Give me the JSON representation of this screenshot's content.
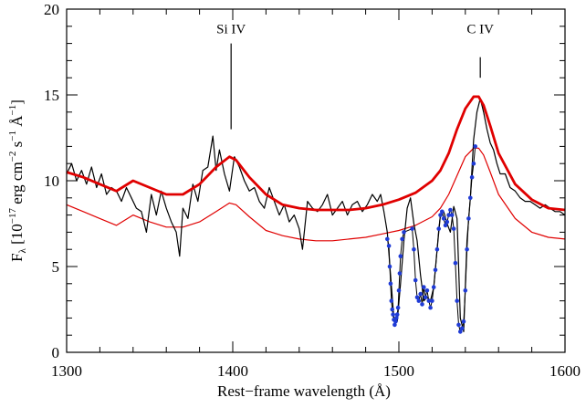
{
  "chart_data": {
    "type": "line",
    "xlabel": "Rest−frame wavelength (Å)",
    "ylabel_main": "F",
    "ylabel_sub": "λ",
    "ylabel_rest": " [10",
    "ylabel_exp1": "−17",
    "ylabel_mid1": " erg cm",
    "ylabel_exp2": "−2",
    "ylabel_mid2": " s",
    "ylabel_exp3": "−1",
    "ylabel_mid3": " Å",
    "ylabel_exp4": "−1",
    "ylabel_end": "]",
    "xlim": [
      1300,
      1600
    ],
    "ylim": [
      0,
      20
    ],
    "xticks": [
      1300,
      1400,
      1500,
      1600
    ],
    "xtick_labels": [
      "1300",
      "1400",
      "1500",
      "1600"
    ],
    "yticks": [
      0,
      5,
      10,
      15,
      20
    ],
    "ytick_labels": [
      "0",
      "5",
      "10",
      "15",
      "20"
    ],
    "grid": false,
    "annotations": [
      {
        "text": "Si IV",
        "x": 1399,
        "line_from": 13,
        "line_to": 18.0,
        "label_y": 18.6
      },
      {
        "text": "C IV",
        "x": 1549,
        "line_from": 16,
        "line_to": 17.2,
        "label_y": 18.6
      }
    ],
    "series": [
      {
        "color": "#000000",
        "kind": "observed_spectrum",
        "x": [
          1300,
          1303,
          1306,
          1309,
          1312,
          1315,
          1318,
          1321,
          1324,
          1327,
          1330,
          1333,
          1336,
          1339,
          1342,
          1345,
          1348,
          1351,
          1354,
          1357,
          1360,
          1363,
          1366,
          1368,
          1370,
          1373,
          1376,
          1379,
          1382,
          1385,
          1388,
          1390,
          1392,
          1395,
          1398,
          1401,
          1404,
          1407,
          1410,
          1413,
          1416,
          1419,
          1422,
          1425,
          1428,
          1431,
          1434,
          1437,
          1440,
          1442,
          1445,
          1448,
          1451,
          1454,
          1457,
          1460,
          1463,
          1466,
          1469,
          1472,
          1475,
          1478,
          1481,
          1484,
          1487,
          1489,
          1491,
          1493,
          1495,
          1497,
          1499,
          1501,
          1503,
          1505,
          1507,
          1509,
          1511,
          1513,
          1515,
          1517,
          1519,
          1521,
          1523,
          1525,
          1527,
          1529,
          1531,
          1533,
          1535,
          1537,
          1539,
          1541,
          1543,
          1545,
          1547,
          1549,
          1551,
          1553,
          1555,
          1557,
          1559,
          1561,
          1564,
          1567,
          1570,
          1573,
          1576,
          1579,
          1582,
          1585,
          1588,
          1591,
          1594,
          1597,
          1600
        ],
        "y": [
          10.4,
          11.0,
          10.0,
          10.6,
          9.8,
          10.8,
          9.6,
          10.4,
          9.2,
          9.6,
          9.4,
          8.8,
          9.6,
          9.0,
          8.4,
          8.2,
          7.0,
          9.2,
          8.0,
          9.4,
          8.4,
          7.6,
          7.0,
          5.6,
          8.4,
          7.8,
          9.8,
          8.8,
          10.6,
          10.8,
          12.6,
          10.6,
          11.8,
          10.4,
          9.4,
          11.4,
          10.8,
          10.0,
          9.4,
          9.6,
          8.8,
          8.4,
          9.6,
          8.8,
          8.0,
          8.6,
          7.6,
          8.0,
          7.2,
          6.0,
          8.8,
          8.4,
          8.2,
          8.6,
          9.2,
          8.0,
          8.4,
          8.8,
          8.0,
          8.6,
          8.8,
          8.2,
          8.6,
          9.2,
          8.8,
          9.2,
          8.2,
          7.0,
          4.5,
          2.0,
          1.8,
          4.0,
          6.5,
          8.4,
          9.0,
          7.5,
          6.5,
          4.5,
          3.0,
          3.2,
          3.0,
          3.8,
          6.0,
          8.0,
          8.2,
          7.5,
          7.0,
          8.5,
          7.8,
          2.0,
          1.2,
          6.5,
          9.0,
          12.4,
          14.0,
          14.8,
          14.0,
          13.0,
          12.2,
          11.8,
          11.0,
          10.4,
          10.4,
          9.6,
          9.4,
          9.0,
          8.8,
          8.8,
          8.6,
          8.4,
          8.6,
          8.4,
          8.2,
          8.2,
          8.0
        ]
      },
      {
        "color": "#e00000",
        "kind": "thick_fit",
        "x": [
          1300,
          1310,
          1320,
          1330,
          1340,
          1350,
          1360,
          1370,
          1380,
          1390,
          1398,
          1402,
          1410,
          1420,
          1430,
          1440,
          1450,
          1460,
          1470,
          1480,
          1490,
          1500,
          1510,
          1520,
          1525,
          1530,
          1535,
          1540,
          1545,
          1548,
          1551,
          1555,
          1560,
          1570,
          1580,
          1590,
          1600
        ],
        "y": [
          10.5,
          10.2,
          9.8,
          9.4,
          10.0,
          9.6,
          9.2,
          9.2,
          9.8,
          10.8,
          11.4,
          11.2,
          10.2,
          9.2,
          8.6,
          8.4,
          8.3,
          8.3,
          8.3,
          8.4,
          8.6,
          8.9,
          9.3,
          10.0,
          10.6,
          11.6,
          13.0,
          14.2,
          14.9,
          14.9,
          14.4,
          13.2,
          11.6,
          9.8,
          8.9,
          8.4,
          8.3
        ]
      },
      {
        "color": "#e00000",
        "kind": "thin_template",
        "x": [
          1300,
          1310,
          1320,
          1330,
          1340,
          1350,
          1360,
          1370,
          1380,
          1390,
          1398,
          1402,
          1410,
          1420,
          1430,
          1440,
          1450,
          1460,
          1470,
          1480,
          1490,
          1500,
          1510,
          1520,
          1525,
          1530,
          1535,
          1540,
          1545,
          1548,
          1551,
          1555,
          1560,
          1570,
          1580,
          1590,
          1600
        ],
        "y": [
          8.6,
          8.2,
          7.8,
          7.4,
          8.0,
          7.6,
          7.3,
          7.3,
          7.6,
          8.2,
          8.7,
          8.6,
          7.9,
          7.1,
          6.8,
          6.6,
          6.5,
          6.5,
          6.6,
          6.7,
          6.9,
          7.1,
          7.4,
          7.9,
          8.4,
          9.2,
          10.3,
          11.4,
          11.9,
          11.9,
          11.5,
          10.5,
          9.2,
          7.8,
          7.0,
          6.7,
          6.6
        ]
      },
      {
        "color": "#1f3bd6",
        "kind": "absorption_points",
        "x": [
          1493,
          1494,
          1494.5,
          1495,
          1495.5,
          1496,
          1496.5,
          1497,
          1497.5,
          1498,
          1498.5,
          1499,
          1499.5,
          1500,
          1500.5,
          1501,
          1502,
          1503,
          1508,
          1509,
          1510,
          1511,
          1512,
          1513,
          1514,
          1515,
          1516,
          1517,
          1518,
          1519,
          1520,
          1521,
          1522,
          1523,
          1524,
          1525,
          1526,
          1527,
          1528,
          1529,
          1530,
          1531,
          1532,
          1533,
          1534,
          1535,
          1536,
          1537,
          1538,
          1539,
          1540,
          1541,
          1542,
          1543,
          1544,
          1545,
          1546
        ],
        "y": [
          6.6,
          6.2,
          5.0,
          4.0,
          3.0,
          2.5,
          2.2,
          1.9,
          1.6,
          1.8,
          2.0,
          2.2,
          2.6,
          3.6,
          4.6,
          5.6,
          6.6,
          7.0,
          7.2,
          6.0,
          4.2,
          3.2,
          3.0,
          3.4,
          2.8,
          3.8,
          3.2,
          3.6,
          3.0,
          2.6,
          3.0,
          3.8,
          4.8,
          6.0,
          7.2,
          8.0,
          8.2,
          7.8,
          7.4,
          7.6,
          8.0,
          8.3,
          8.0,
          7.2,
          5.2,
          3.0,
          1.6,
          1.2,
          1.4,
          1.8,
          3.6,
          6.0,
          7.8,
          9.0,
          10.2,
          11.0,
          12.0
        ]
      }
    ]
  }
}
